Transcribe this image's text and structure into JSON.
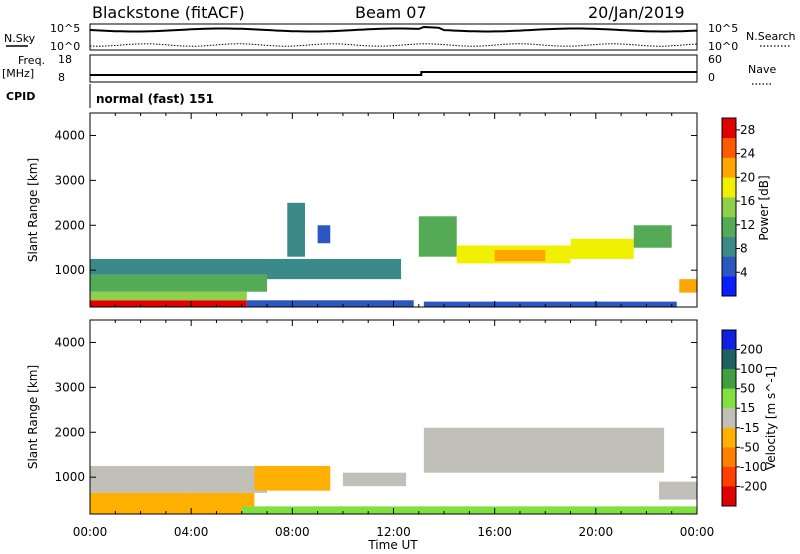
{
  "header": {
    "station": "Blackstone (fitACF)",
    "beam": "Beam 07",
    "date": "20/Jan/2019"
  },
  "top_panels": {
    "nsky_label": "N.Sky",
    "nsearch_label": "N.Search",
    "noise_ticks": [
      "10^5",
      "10^0"
    ],
    "freq_label": "Freq.",
    "freq_unit": "[MHz]",
    "freq_ticks": [
      "18",
      "8"
    ],
    "nave_label": "Nave",
    "nave_ticks": [
      "60",
      "0"
    ],
    "cpid_label": "CPID",
    "cpid_text": "normal (fast) 151"
  },
  "chart_data": [
    {
      "type": "heatmap",
      "name": "power",
      "ylabel": "Slant Range [km]",
      "xlabel": "Time UT",
      "xticks": [
        "00:00",
        "04:00",
        "08:00",
        "12:00",
        "16:00",
        "20:00",
        "00:00"
      ],
      "xlim_hours": [
        0,
        24
      ],
      "yticks": [
        1000,
        2000,
        3000,
        4000
      ],
      "ylim": [
        180,
        4500
      ],
      "colorbar": {
        "label": "Power [dB]",
        "ticks": [
          4,
          8,
          12,
          16,
          20,
          24,
          28
        ],
        "range": [
          0,
          30
        ],
        "colors": [
          "#0a1dff",
          "#2c56c0",
          "#3b8a8a",
          "#55aa55",
          "#8fd04a",
          "#f0f000",
          "#ffa500",
          "#ff5a00",
          "#e00000"
        ]
      },
      "bands": [
        {
          "t0": 0.0,
          "t1": 6.2,
          "r0": 180,
          "r1": 330,
          "value": 27
        },
        {
          "t0": 0.0,
          "t1": 6.2,
          "r0": 330,
          "r1": 520,
          "value": 14
        },
        {
          "t0": 0.0,
          "t1": 7.0,
          "r0": 520,
          "r1": 900,
          "value": 11
        },
        {
          "t0": 0.0,
          "t1": 7.5,
          "r0": 900,
          "r1": 1250,
          "value": 7
        },
        {
          "t0": 7.0,
          "t1": 12.3,
          "r0": 800,
          "r1": 1250,
          "value": 8
        },
        {
          "t0": 6.2,
          "t1": 12.8,
          "r0": 180,
          "r1": 330,
          "value": 5
        },
        {
          "t0": 13.2,
          "t1": 23.2,
          "r0": 180,
          "r1": 300,
          "value": 4
        },
        {
          "t0": 7.8,
          "t1": 8.5,
          "r0": 1300,
          "r1": 2500,
          "value": 7
        },
        {
          "t0": 9.0,
          "t1": 9.5,
          "r0": 1600,
          "r1": 2000,
          "value": 6
        },
        {
          "t0": 13.0,
          "t1": 14.5,
          "r0": 1300,
          "r1": 2200,
          "value": 12
        },
        {
          "t0": 14.5,
          "t1": 19.0,
          "r0": 1150,
          "r1": 1550,
          "value": 19
        },
        {
          "t0": 16.0,
          "t1": 18.0,
          "r0": 1200,
          "r1": 1450,
          "value": 23
        },
        {
          "t0": 19.0,
          "t1": 21.5,
          "r0": 1250,
          "r1": 1700,
          "value": 17
        },
        {
          "t0": 21.5,
          "t1": 23.0,
          "r0": 1500,
          "r1": 2000,
          "value": 12
        },
        {
          "t0": 23.3,
          "t1": 24.0,
          "r0": 500,
          "r1": 800,
          "value": 22
        }
      ]
    },
    {
      "type": "heatmap",
      "name": "velocity",
      "ylabel": "Slant Range [km]",
      "xlabel": "Time UT",
      "xticks": [
        "00:00",
        "04:00",
        "08:00",
        "12:00",
        "16:00",
        "20:00",
        "00:00"
      ],
      "xlim_hours": [
        0,
        24
      ],
      "yticks": [
        1000,
        2000,
        3000,
        4000
      ],
      "ylim": [
        180,
        4500
      ],
      "colorbar": {
        "label": "Velocity [m s^-1]",
        "ticks": [
          200,
          100,
          50,
          15,
          -15,
          -50,
          -100,
          -200
        ],
        "colors": [
          "#1020e0",
          "#206060",
          "#40a040",
          "#80e040",
          "#c0c0b8",
          "#ffb000",
          "#ff8000",
          "#ff4000",
          "#e00000"
        ]
      },
      "bands": [
        {
          "t0": 0.0,
          "t1": 7.0,
          "r0": 650,
          "r1": 1250,
          "value": 0
        },
        {
          "t0": 0.0,
          "t1": 6.5,
          "r0": 180,
          "r1": 650,
          "value": -30
        },
        {
          "t0": 6.5,
          "t1": 9.5,
          "r0": 700,
          "r1": 1250,
          "value": -45
        },
        {
          "t0": 10.0,
          "t1": 12.5,
          "r0": 800,
          "r1": 1100,
          "value": 0
        },
        {
          "t0": 13.2,
          "t1": 22.7,
          "r0": 1100,
          "r1": 2100,
          "value": 0
        },
        {
          "t0": 6.0,
          "t1": 24.0,
          "r0": 180,
          "r1": 350,
          "value": 30
        },
        {
          "t0": 22.5,
          "t1": 24.0,
          "r0": 500,
          "r1": 900,
          "value": 0
        }
      ]
    }
  ]
}
